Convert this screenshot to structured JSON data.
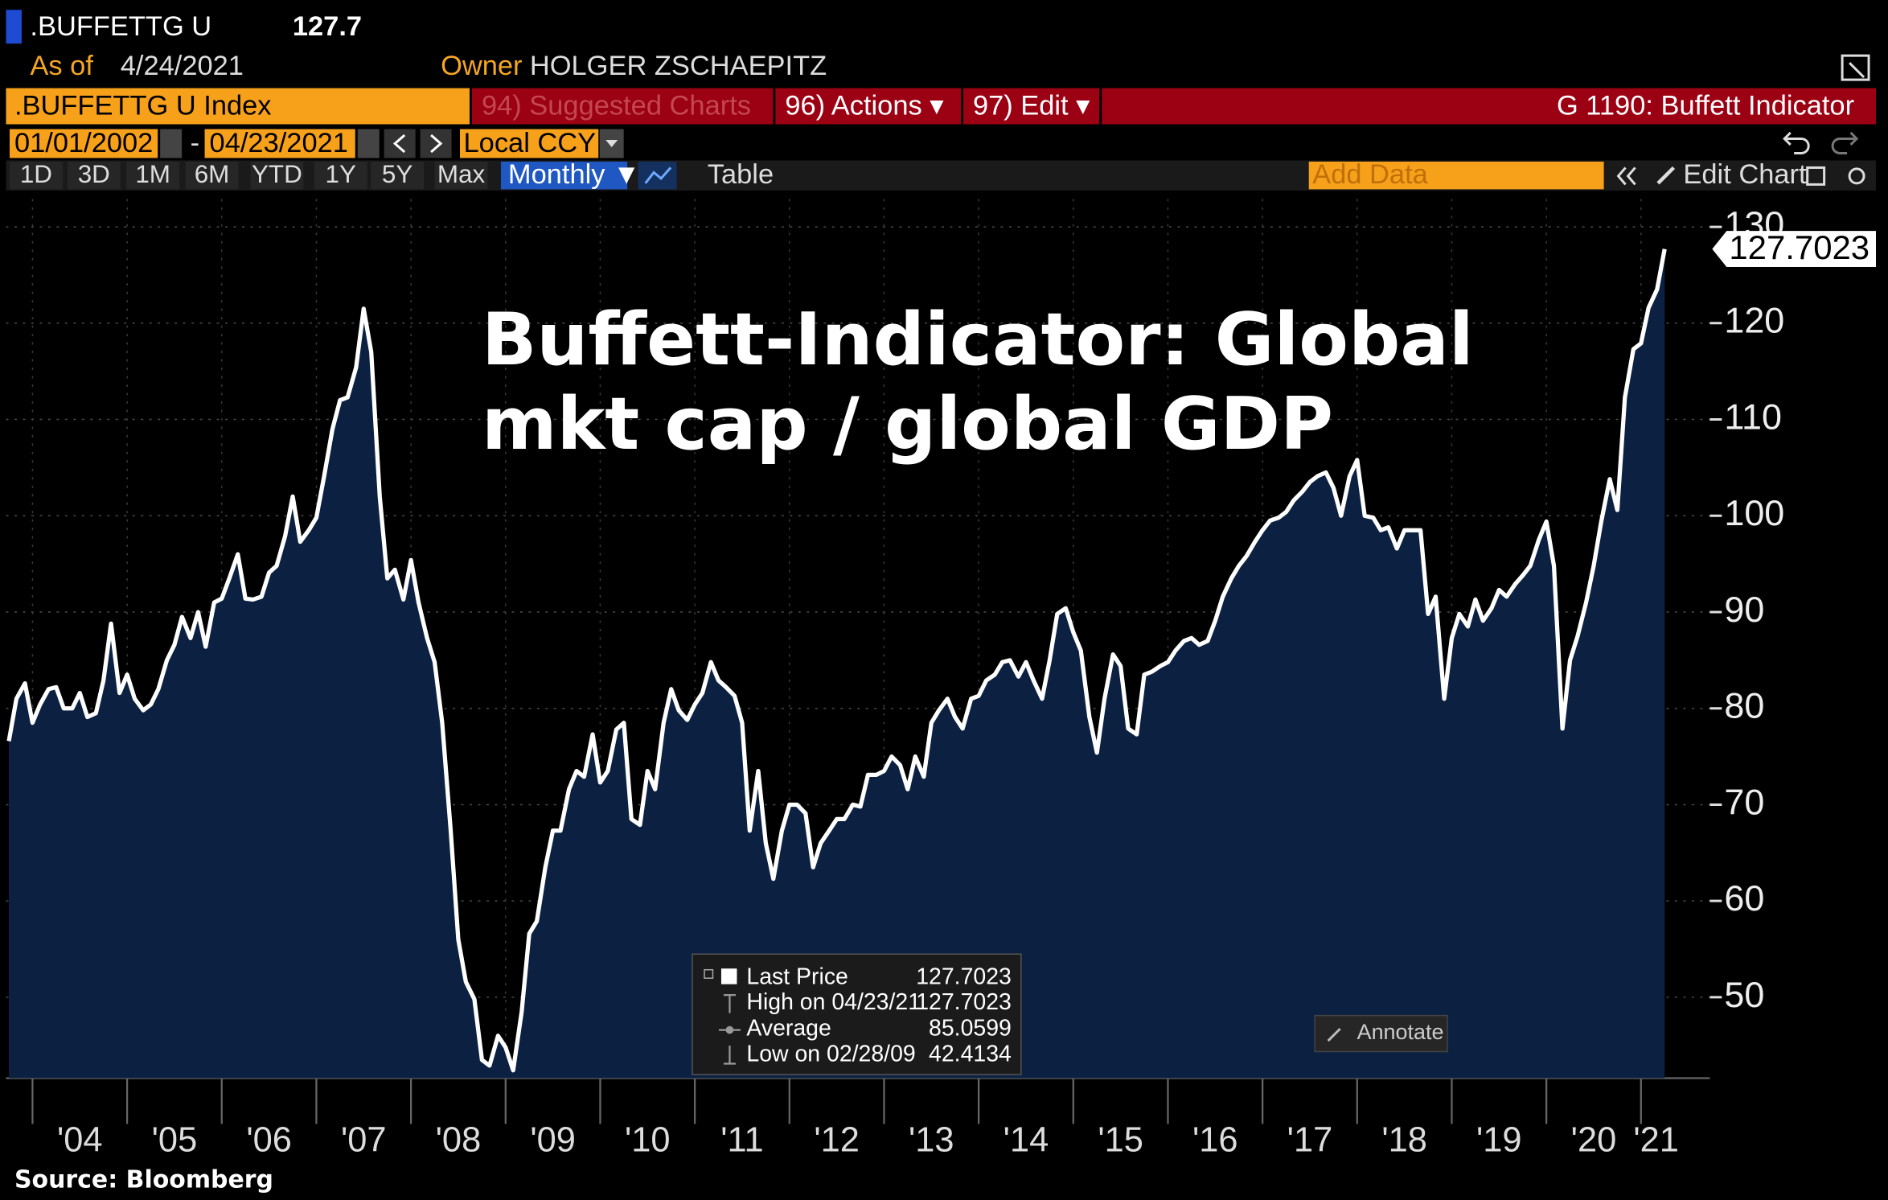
{
  "header": {
    "ticker": ".BUFFETTG U",
    "price": "127.7",
    "as_of_label": "As of",
    "as_of": "4/24/2021",
    "owner_label": "Owner",
    "owner": "HOLGER ZSCHAEPITZ"
  },
  "toolbar": {
    "security": ".BUFFETTG U Index",
    "suggested": "94) Suggested Charts",
    "actions": "96) Actions ▾",
    "edit": "97) Edit ▾",
    "function": "G 1190: Buffett Indicator",
    "start_date": "01/01/2002",
    "separator": "-",
    "end_date": "04/23/2021",
    "currency": "Local CCY",
    "ranges": [
      "1D",
      "3D",
      "1M",
      "6M",
      "YTD",
      "1Y",
      "5Y",
      "Max"
    ],
    "frequency": "Monthly ▼",
    "table": "Table",
    "add_data": "Add Data",
    "edit_chart": "Edit Chart"
  },
  "chart_data": {
    "type": "line",
    "annotations": [
      "Buffett-Indicator: Global",
      "mkt cap / global GDP"
    ],
    "x": [
      2003.75,
      2003.83,
      2003.92,
      2004,
      2004.08,
      2004.17,
      2004.25,
      2004.33,
      2004.42,
      2004.5,
      2004.58,
      2004.67,
      2004.75,
      2004.83,
      2004.92,
      2005,
      2005.08,
      2005.17,
      2005.25,
      2005.33,
      2005.42,
      2005.5,
      2005.58,
      2005.67,
      2005.75,
      2005.83,
      2005.92,
      2006,
      2006.08,
      2006.17,
      2006.25,
      2006.33,
      2006.42,
      2006.5,
      2006.58,
      2006.67,
      2006.75,
      2006.83,
      2006.92,
      2007,
      2007.08,
      2007.17,
      2007.25,
      2007.33,
      2007.42,
      2007.5,
      2007.58,
      2007.67,
      2007.75,
      2007.83,
      2007.92,
      2008,
      2008.08,
      2008.17,
      2008.25,
      2008.33,
      2008.42,
      2008.5,
      2008.58,
      2008.67,
      2008.75,
      2008.83,
      2008.92,
      2009,
      2009.08,
      2009.17,
      2009.25,
      2009.33,
      2009.42,
      2009.5,
      2009.58,
      2009.67,
      2009.75,
      2009.83,
      2009.92,
      2010,
      2010.08,
      2010.17,
      2010.25,
      2010.33,
      2010.42,
      2010.5,
      2010.58,
      2010.67,
      2010.75,
      2010.83,
      2010.92,
      2011,
      2011.08,
      2011.17,
      2011.25,
      2011.33,
      2011.42,
      2011.5,
      2011.58,
      2011.67,
      2011.75,
      2011.83,
      2011.92,
      2012,
      2012.08,
      2012.17,
      2012.25,
      2012.33,
      2012.42,
      2012.5,
      2012.58,
      2012.67,
      2012.75,
      2012.83,
      2012.92,
      2013,
      2013.08,
      2013.17,
      2013.25,
      2013.33,
      2013.42,
      2013.5,
      2013.58,
      2013.67,
      2013.75,
      2013.83,
      2013.92,
      2014,
      2014.08,
      2014.17,
      2014.25,
      2014.33,
      2014.42,
      2014.5,
      2014.58,
      2014.67,
      2014.75,
      2014.83,
      2014.92,
      2015,
      2015.08,
      2015.17,
      2015.25,
      2015.33,
      2015.42,
      2015.5,
      2015.58,
      2015.67,
      2015.75,
      2015.83,
      2015.92,
      2016,
      2016.08,
      2016.17,
      2016.25,
      2016.33,
      2016.42,
      2016.5,
      2016.58,
      2016.67,
      2016.75,
      2016.83,
      2016.92,
      2017,
      2017.08,
      2017.17,
      2017.25,
      2017.33,
      2017.42,
      2017.5,
      2017.58,
      2017.67,
      2017.75,
      2017.83,
      2017.92,
      2018,
      2018.08,
      2018.17,
      2018.25,
      2018.33,
      2018.42,
      2018.5,
      2018.58,
      2018.67,
      2018.75,
      2018.83,
      2018.92,
      2019,
      2019.08,
      2019.17,
      2019.25,
      2019.33,
      2019.42,
      2019.5,
      2019.58,
      2019.67,
      2019.75,
      2019.83,
      2019.92,
      2020,
      2020.08,
      2020.17,
      2020.25,
      2020.33,
      2020.42,
      2020.5,
      2020.58,
      2020.67,
      2020.75,
      2020.83,
      2020.92,
      2021,
      2021.08,
      2021.17,
      2021.25
    ],
    "series": [
      {
        "name": "Last Price",
        "color": "#ffffff",
        "area_color": "#0c2142",
        "values": [
          76.6,
          81,
          82.6,
          78.5,
          80.4,
          82,
          82.2,
          80,
          80,
          81.6,
          79.1,
          79.5,
          82.9,
          88.8,
          81.6,
          83.5,
          81,
          79.8,
          80.4,
          82,
          85,
          86.6,
          89.5,
          87.3,
          90,
          86.4,
          91,
          91.4,
          93.5,
          96,
          91.4,
          91.3,
          91.6,
          94.1,
          94.8,
          97.9,
          102,
          97.3,
          98.5,
          99.8,
          104,
          109,
          112,
          112.3,
          115.4,
          121.5,
          117,
          102,
          93.5,
          94.4,
          91.3,
          95.4,
          91,
          87.3,
          84.8,
          78.5,
          67.3,
          56,
          51.6,
          49.8,
          43.5,
          42.9,
          46,
          44.8,
          42.4134,
          48.5,
          56.6,
          57.9,
          63.5,
          67.3,
          67.3,
          71.6,
          73.5,
          72.9,
          77.3,
          72.3,
          73.5,
          77.8,
          78.5,
          68.5,
          67.9,
          73.5,
          71.6,
          78.5,
          82,
          79.8,
          78.8,
          80.4,
          81.6,
          84.8,
          82.9,
          82.2,
          81.3,
          78.5,
          67.3,
          73.5,
          66,
          62.3,
          67.3,
          70,
          70,
          69.1,
          63.5,
          66,
          67.3,
          68.5,
          68.5,
          70,
          69.8,
          73.1,
          73.1,
          73.5,
          75,
          74.1,
          71.6,
          75,
          72.9,
          78.5,
          79.8,
          81,
          79.1,
          77.9,
          81,
          81.3,
          82.9,
          83.5,
          84.8,
          85,
          83.3,
          84.8,
          82.9,
          81,
          85,
          89.8,
          90.4,
          87.9,
          86,
          79.1,
          75.4,
          81,
          85.6,
          84.4,
          77.9,
          77.3,
          83.5,
          83.8,
          84.4,
          84.8,
          86,
          87,
          87.3,
          86.6,
          87,
          89.1,
          91.6,
          93.5,
          94.8,
          95.8,
          97.3,
          98.5,
          99.5,
          99.8,
          100.4,
          101.6,
          102.5,
          103.5,
          104.1,
          104.5,
          102.9,
          100,
          104.1,
          105.8,
          100,
          99.8,
          98.5,
          98.8,
          96.6,
          98.5,
          98.5,
          98.5,
          89.8,
          91.6,
          81,
          87.3,
          89.8,
          88.5,
          91.3,
          89.1,
          90.4,
          92.3,
          91.6,
          92.9,
          93.8,
          94.8,
          97.5,
          99.4,
          94.8,
          77.9,
          85,
          87.5,
          91,
          94.8,
          99.4,
          103.8,
          100.6,
          112.3,
          117.3,
          117.9,
          121.6,
          123.5,
          127.7023
        ]
      }
    ],
    "xlim": [
      2003.72,
      2021.32
    ],
    "xticks": [
      {
        "value": 2004,
        "label": "'04"
      },
      {
        "value": 2005,
        "label": "'05"
      },
      {
        "value": 2006,
        "label": "'06"
      },
      {
        "value": 2007,
        "label": "'07"
      },
      {
        "value": 2008,
        "label": "'08"
      },
      {
        "value": 2009,
        "label": "'09"
      },
      {
        "value": 2010,
        "label": "'10"
      },
      {
        "value": 2011,
        "label": "'11"
      },
      {
        "value": 2012,
        "label": "'12"
      },
      {
        "value": 2013,
        "label": "'13"
      },
      {
        "value": 2014,
        "label": "'14"
      },
      {
        "value": 2015,
        "label": "'15"
      },
      {
        "value": 2016,
        "label": "'16"
      },
      {
        "value": 2017,
        "label": "'17"
      },
      {
        "value": 2018,
        "label": "'18"
      },
      {
        "value": 2019,
        "label": "'19"
      },
      {
        "value": 2020,
        "label": "'20"
      },
      {
        "value": 2021,
        "label": "'21"
      }
    ],
    "ylim": [
      41.6,
      132.9
    ],
    "yticks": [
      50,
      60,
      70,
      80,
      90,
      100,
      110,
      120,
      130
    ],
    "grid": true,
    "legend": {
      "stats": [
        {
          "label": "High on 04/23/21",
          "value": 127.7023
        },
        {
          "label": "Average",
          "value": 85.0599
        },
        {
          "label": "Low on 02/28/09",
          "value": 42.4134
        }
      ]
    },
    "annotate": "Annotate"
  },
  "source": "Source: Bloomberg"
}
